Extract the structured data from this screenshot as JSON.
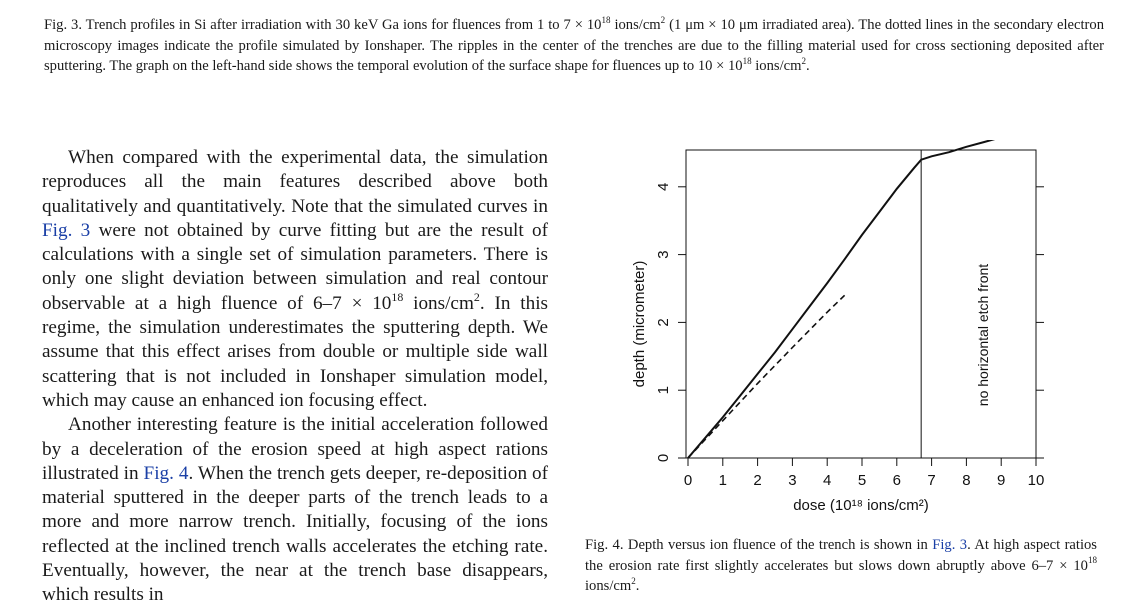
{
  "top_caption": {
    "label": "Fig. 3.",
    "part1": "Trench profiles in Si after irradiation with 30 keV Ga ions for fluences from 1 to 7 × 10",
    "exp1": "18",
    "part2": " ions/cm",
    "exp2": "2",
    "part3": " (1 μm × 10 μm irradiated area). The dotted lines in the secondary electron microscopy images indicate the profile simulated by Ionshaper. The ripples in the center of the trenches are due to the filling material used for cross sectioning deposited after sputtering. The graph on the left-hand side shows the temporal evolution of the surface shape for fluences up to 10 × 10",
    "exp3": "18",
    "part4": " ions/cm",
    "exp4": "2",
    "part5": "."
  },
  "body": {
    "p1_a": "When compared with the experimental data, the simulation reproduces all the main features described above both qualitatively and quantitatively. Note that the simulated curves in ",
    "p1_link": "Fig. 3",
    "p1_b": " were not obtained by curve fitting but are the result of calculations with a single set of simulation parameters. There is only one slight deviation between simulation and real contour observable at a high fluence of 6–7 × 10",
    "p1_exp1": "18",
    "p1_c": " ions/cm",
    "p1_exp2": "2",
    "p1_d": ". In this regime, the simulation underestimates the sputtering depth. We assume that this effect arises from double or multiple side wall scattering that is not included in Ionshaper simulation model, which may cause an enhanced ion focusing effect.",
    "p2_a": "Another interesting feature is the initial acceleration followed by a deceleration of the erosion speed at high aspect rations illustrated in ",
    "p2_link": "Fig. 4",
    "p2_b": ". When the trench gets deeper, re-deposition of material sputtered in the deeper parts of the trench leads to a more and more narrow trench. Initially, focusing of the ions reflected at the inclined trench walls accelerates the etching rate. Eventually, however, the near at the trench base disappears, which results in"
  },
  "fig4_caption": {
    "label": "Fig. 4.",
    "part1": " Depth versus ion fluence of the trench is shown in ",
    "link": "Fig. 3",
    "part2": ". At high aspect ratios the erosion rate first slightly accelerates but slows down abruptly above 6–7 × 10",
    "exp1": "18",
    "part3": " ions/cm",
    "exp2": "2",
    "part4": "."
  },
  "chart_data": {
    "type": "line",
    "xlabel": "dose (10¹⁸ ions/cm²)",
    "ylabel": "depth (micrometer)",
    "xlim": [
      0,
      10
    ],
    "ylim": [
      0,
      4.5
    ],
    "x_ticks": [
      "0",
      "1",
      "2",
      "3",
      "4",
      "5",
      "6",
      "7",
      "8",
      "9",
      "10"
    ],
    "y_ticks": [
      "0",
      "1",
      "2",
      "3",
      "4"
    ],
    "vline_x": 6.7,
    "vline_label": "no horizontal etch front",
    "series": [
      {
        "style": "solid",
        "x": [
          0,
          0.5,
          1,
          1.5,
          2,
          2.5,
          3,
          3.5,
          4,
          4.5,
          5,
          5.5,
          6,
          6.5,
          6.7,
          7,
          7.5,
          8,
          8.5,
          9,
          9.5,
          9.9
        ],
        "y": [
          0,
          0.3,
          0.6,
          0.92,
          1.24,
          1.56,
          1.9,
          2.24,
          2.58,
          2.93,
          3.29,
          3.63,
          3.97,
          4.28,
          4.4,
          4.45,
          4.51,
          4.59,
          4.66,
          4.73,
          4.8,
          4.85
        ]
      },
      {
        "style": "dashed",
        "x": [
          0,
          1,
          2,
          3,
          4,
          4.5
        ],
        "y": [
          0,
          0.55,
          1.1,
          1.63,
          2.15,
          2.4
        ]
      }
    ]
  },
  "colors": {
    "link": "#1a3fa6",
    "text": "#1a1a1a"
  }
}
